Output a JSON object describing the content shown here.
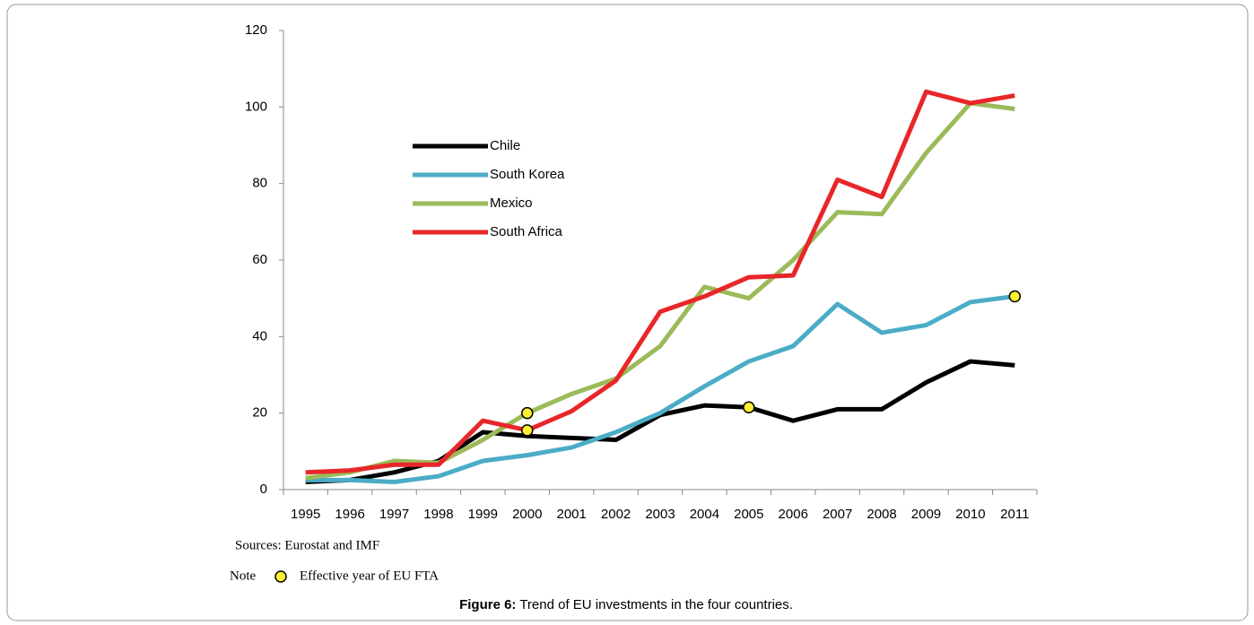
{
  "chart_data": {
    "type": "line",
    "categories": [
      "1995",
      "1996",
      "1997",
      "1998",
      "1999",
      "2000",
      "2001",
      "2002",
      "2003",
      "2004",
      "2005",
      "2006",
      "2007",
      "2008",
      "2009",
      "2010",
      "2011"
    ],
    "series": [
      {
        "name": "Chile",
        "color": "#000000",
        "values": [
          2,
          2.5,
          4.5,
          7.5,
          15,
          14,
          13.5,
          13,
          19.5,
          22,
          21.5,
          18,
          21,
          21,
          28,
          33.5,
          32.5
        ],
        "fta_index": 10
      },
      {
        "name": "South Korea",
        "color": "#4bacc6",
        "values": [
          2.5,
          2.5,
          2,
          3.5,
          7.5,
          9,
          11,
          15,
          20,
          27,
          33.5,
          37.5,
          48.5,
          41,
          43,
          49,
          50.5
        ],
        "fta_index": 16
      },
      {
        "name": "Mexico",
        "color": "#9bbb59",
        "values": [
          3,
          4.5,
          7.5,
          7,
          13,
          20,
          25,
          29,
          37.5,
          53,
          50,
          60,
          72.5,
          72,
          88,
          101,
          99.5
        ],
        "fta_index": 5
      },
      {
        "name": "South Africa",
        "color": "#e8262a",
        "values": [
          4.5,
          5,
          6.5,
          6.5,
          18,
          15.5,
          20.5,
          28.5,
          46.5,
          50.5,
          55.5,
          56,
          81,
          76.5,
          104,
          101,
          103
        ],
        "fta_index": 5
      }
    ],
    "ylim": [
      0,
      120
    ],
    "yticks": [
      0,
      20,
      40,
      60,
      80,
      100,
      120
    ],
    "marker_color": "#ffee33",
    "source": "Sources: Eurostat and IMF",
    "note": "Note",
    "note_text": "Effective year of EU FTA",
    "caption_label": "Figure 6:",
    "caption": "Trend of EU investments in the four countries."
  }
}
